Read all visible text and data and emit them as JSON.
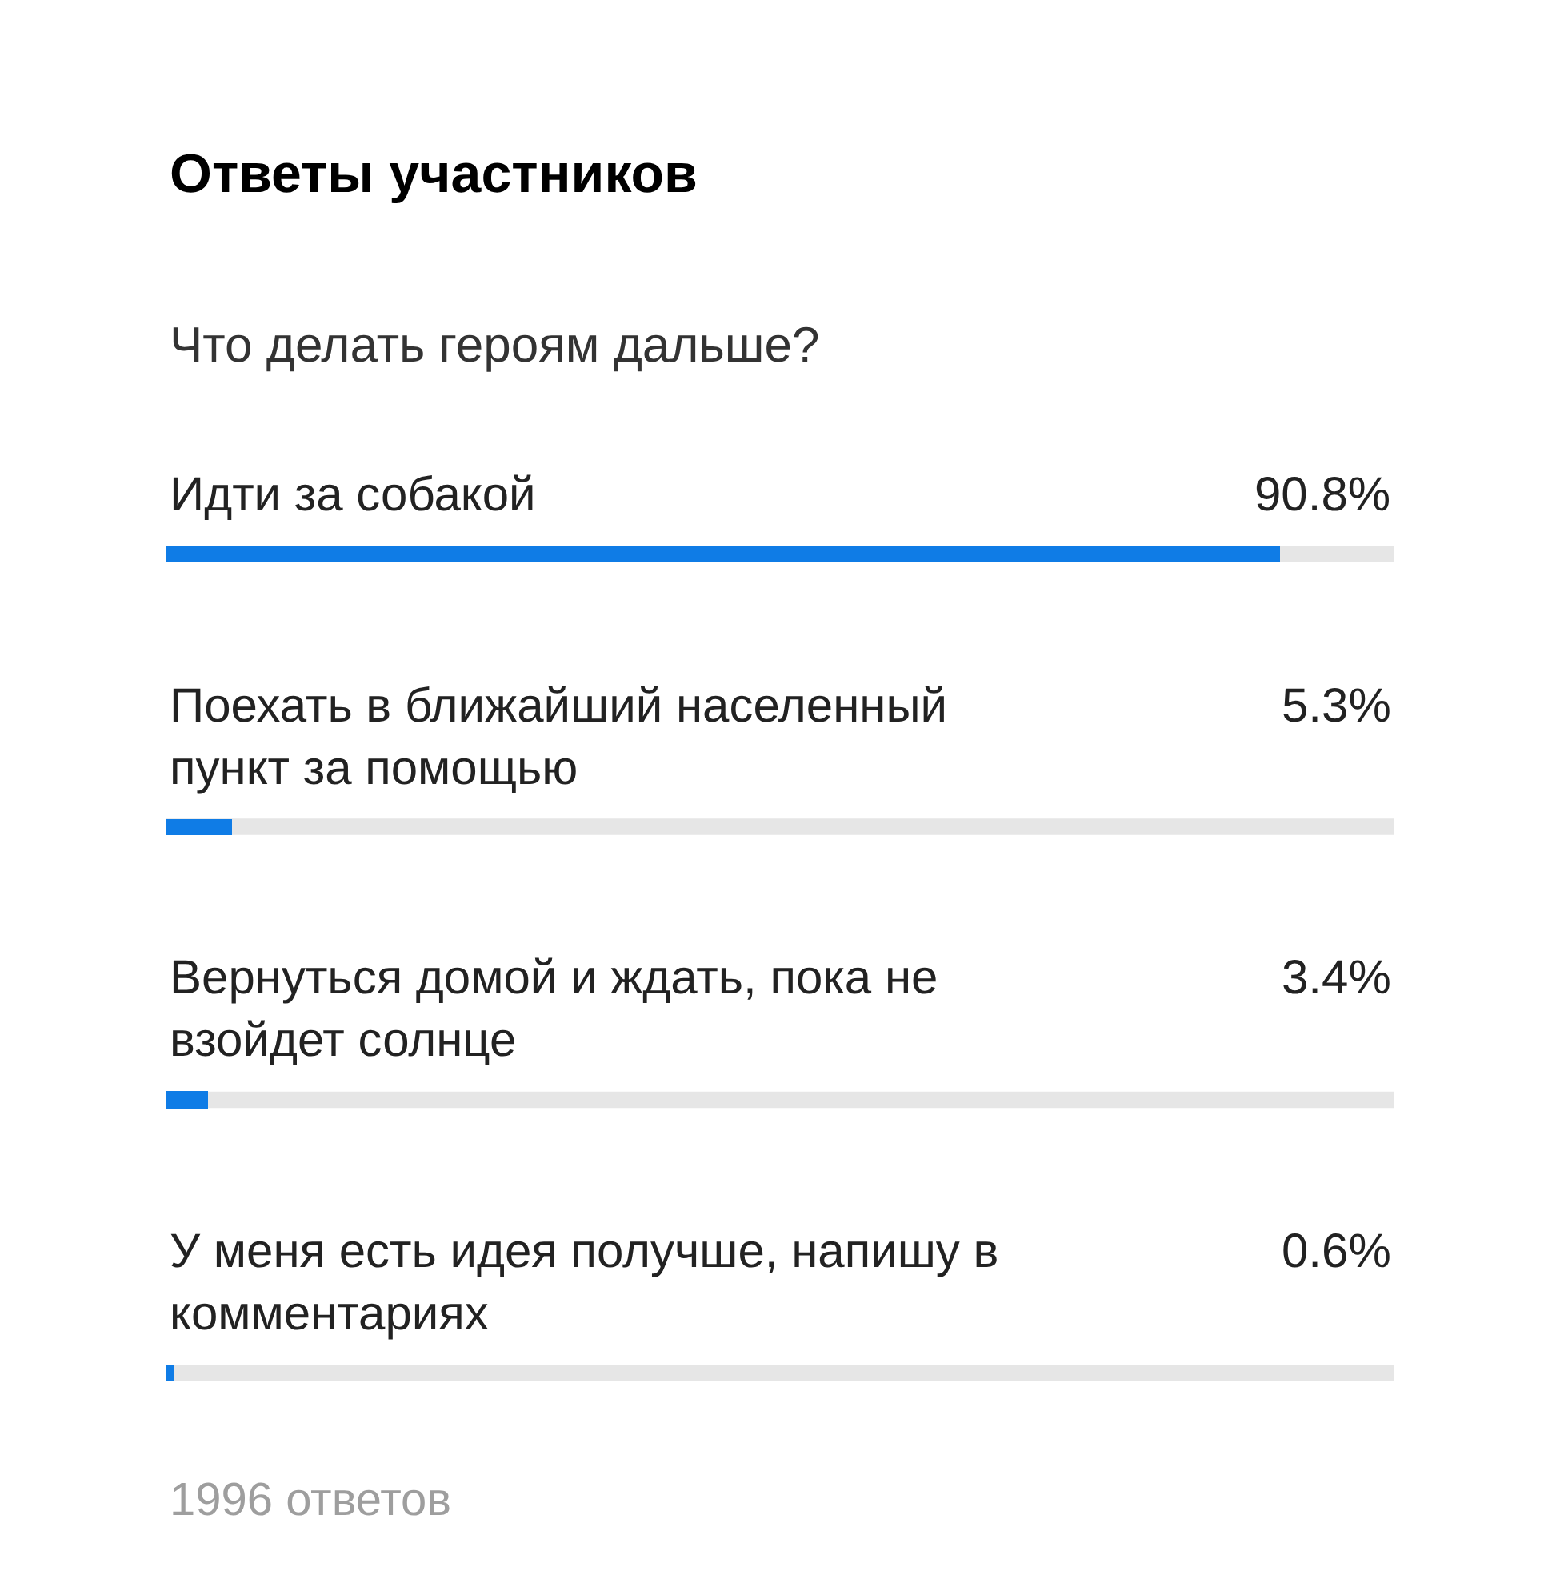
{
  "chart_data": {
    "type": "bar",
    "orientation": "horizontal",
    "title": "Ответы участников",
    "subtitle": "Что делать героям дальше?",
    "categories": [
      "Идти за собакой",
      "Поехать в ближайший населенный пункт за помощью",
      "Вернуться домой и ждать, пока не взойдет солнце",
      "У меня есть идея получше, напишу в комментариях"
    ],
    "values": [
      90.8,
      5.3,
      3.4,
      0.6
    ],
    "value_labels": [
      "90.8%",
      "5.3%",
      "3.4%",
      "0.6%"
    ],
    "color": "#0f7ce6",
    "xlim": [
      0,
      100
    ],
    "tick_labels": false,
    "grid": false,
    "legend": false,
    "annotations": [
      "1996 ответов"
    ]
  }
}
